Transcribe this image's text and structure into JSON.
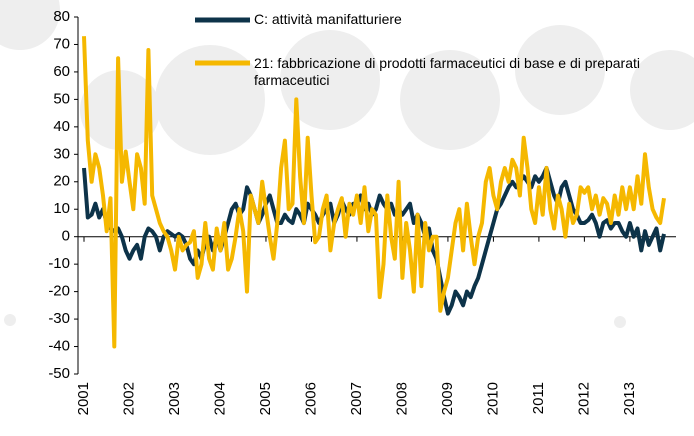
{
  "chart_data": {
    "type": "line",
    "categories": [
      "2001",
      null,
      null,
      null,
      null,
      null,
      null,
      null,
      null,
      null,
      null,
      null,
      "2002",
      null,
      null,
      null,
      null,
      null,
      null,
      null,
      null,
      null,
      null,
      null,
      "2003",
      null,
      null,
      null,
      null,
      null,
      null,
      null,
      null,
      null,
      null,
      null,
      "2004",
      null,
      null,
      null,
      null,
      null,
      null,
      null,
      null,
      null,
      null,
      null,
      "2005",
      null,
      null,
      null,
      null,
      null,
      null,
      null,
      null,
      null,
      null,
      null,
      "2006",
      null,
      null,
      null,
      null,
      null,
      null,
      null,
      null,
      null,
      null,
      null,
      "2007",
      null,
      null,
      null,
      null,
      null,
      null,
      null,
      null,
      null,
      null,
      null,
      "2008",
      null,
      null,
      null,
      null,
      null,
      null,
      null,
      null,
      null,
      null,
      null,
      "2009",
      null,
      null,
      null,
      null,
      null,
      null,
      null,
      null,
      null,
      null,
      null,
      "2010",
      null,
      null,
      null,
      null,
      null,
      null,
      null,
      null,
      null,
      null,
      null,
      "2011",
      null,
      null,
      null,
      null,
      null,
      null,
      null,
      null,
      null,
      null,
      null,
      "2012",
      null,
      null,
      null,
      null,
      null,
      null,
      null,
      null,
      null,
      null,
      null,
      "2013",
      null,
      null,
      null,
      null,
      null,
      null,
      null,
      null,
      null
    ],
    "series": [
      {
        "name": "C: attività manifatturiere",
        "color": "#0d3349",
        "values": [
          25,
          7,
          8,
          12,
          7,
          10,
          5,
          3,
          2,
          3,
          0,
          -5,
          -8,
          -5,
          -3,
          -8,
          0,
          3,
          2,
          0,
          -5,
          0,
          2,
          1,
          0,
          1,
          0,
          -3,
          -8,
          -10,
          -5,
          -8,
          -2,
          0,
          -5,
          0,
          -5,
          0,
          5,
          10,
          12,
          8,
          10,
          18,
          15,
          10,
          5,
          8,
          12,
          15,
          10,
          5,
          5,
          8,
          6,
          5,
          10,
          8,
          5,
          12,
          10,
          8,
          5,
          8,
          10,
          12,
          5,
          8,
          13,
          10,
          8,
          12,
          12,
          15,
          10,
          12,
          8,
          10,
          15,
          12,
          10,
          12,
          8,
          10,
          8,
          10,
          12,
          5,
          8,
          5,
          0,
          3,
          -5,
          -8,
          -15,
          -22,
          -28,
          -25,
          -20,
          -22,
          -25,
          -20,
          -22,
          -18,
          -15,
          -10,
          -5,
          0,
          5,
          10,
          12,
          15,
          18,
          20,
          18,
          20,
          22,
          20,
          18,
          22,
          20,
          22,
          25,
          20,
          15,
          12,
          18,
          20,
          15,
          10,
          8,
          5,
          5,
          6,
          8,
          5,
          0,
          5,
          6,
          3,
          5,
          5,
          2,
          0,
          5,
          0,
          3,
          -5,
          2,
          -3,
          0,
          3,
          -5,
          1
        ]
      },
      {
        "name": "21: fabbricazione di prodotti farmaceutici di base e di preparati farmaceutici",
        "color": "#f5b800",
        "values": [
          73,
          35,
          20,
          30,
          25,
          15,
          2,
          14,
          -40,
          65,
          20,
          31,
          20,
          10,
          30,
          25,
          12,
          68,
          15,
          10,
          5,
          2,
          0,
          -5,
          -12,
          0,
          -5,
          -3,
          -2,
          2,
          -15,
          -10,
          5,
          -8,
          -12,
          3,
          -5,
          5,
          -12,
          -8,
          0,
          10,
          2,
          -20,
          15,
          10,
          5,
          20,
          10,
          0,
          -8,
          5,
          25,
          35,
          10,
          12,
          50,
          22,
          5,
          36,
          15,
          -2,
          0,
          10,
          15,
          -5,
          5,
          10,
          14,
          0,
          12,
          8,
          15,
          5,
          18,
          2,
          10,
          8,
          -22,
          -10,
          15,
          0,
          -8,
          20,
          -15,
          5,
          -5,
          -20,
          8,
          -18,
          5,
          -5,
          0,
          0,
          -27,
          -20,
          -15,
          -5,
          5,
          10,
          -5,
          12,
          0,
          -10,
          0,
          5,
          20,
          25,
          15,
          10,
          20,
          25,
          20,
          28,
          25,
          15,
          36,
          25,
          10,
          5,
          18,
          8,
          25,
          10,
          3,
          15,
          10,
          0,
          12,
          5,
          8,
          18,
          16,
          18,
          10,
          15,
          8,
          14,
          12,
          5,
          15,
          8,
          18,
          10,
          18,
          10,
          22,
          12,
          30,
          18,
          10,
          7,
          5,
          14
        ]
      }
    ],
    "ylim": [
      -50,
      80
    ],
    "yticks": [
      -50,
      -40,
      -30,
      -20,
      -10,
      0,
      10,
      20,
      30,
      40,
      50,
      60,
      70,
      80
    ]
  }
}
